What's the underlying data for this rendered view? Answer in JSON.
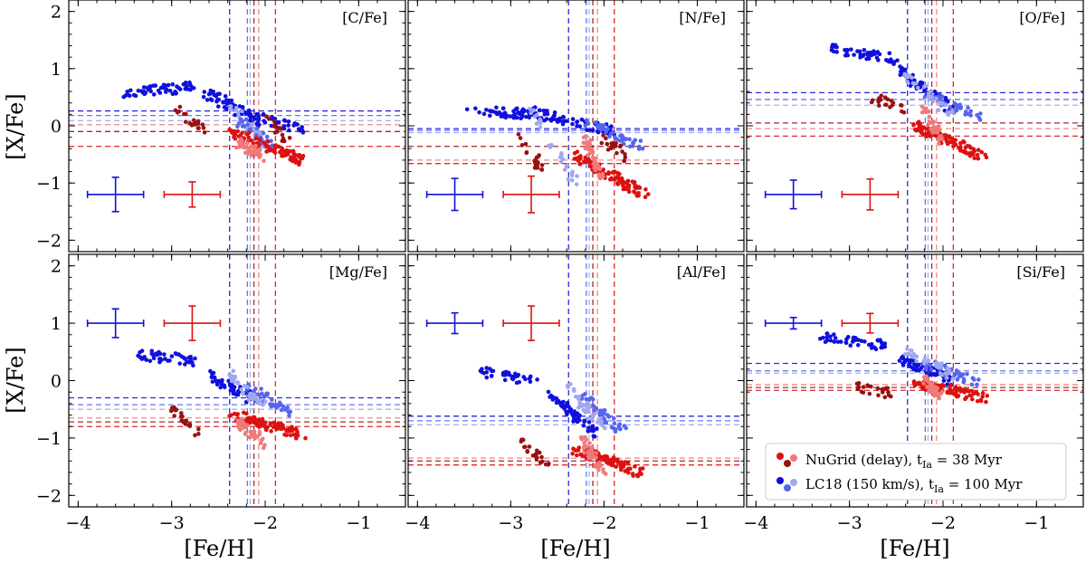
{
  "chart_data": {
    "type": "scatter",
    "xlabel": "[Fe/H]",
    "ylabel": "[X/Fe]",
    "xlim": [
      -4.1,
      -0.5
    ],
    "ylim": [
      -2.2,
      2.2
    ],
    "xticks": [
      -4,
      -3,
      -2,
      -1
    ],
    "yticks": [
      -2,
      -1,
      0,
      1,
      2
    ],
    "xtick_labels": [
      "−4",
      "−3",
      "−2",
      "−1"
    ],
    "ytick_labels": [
      "−2",
      "−1",
      "0",
      "1",
      "2"
    ],
    "colors": {
      "blue": "#1010dd",
      "mid_blue": "#5566ee",
      "light_blue": "#a0a8f0",
      "red": "#dd1111",
      "dark_red": "#991111",
      "light_red": "#f07a7a"
    },
    "feh_vlines": [
      {
        "x": -2.38,
        "color": "blue"
      },
      {
        "x": -2.19,
        "color": "mid_blue"
      },
      {
        "x": -2.16,
        "color": "light_blue"
      },
      {
        "x": -2.12,
        "color": "dark_red"
      },
      {
        "x": -2.07,
        "color": "light_red"
      },
      {
        "x": -1.89,
        "color": "red"
      }
    ],
    "panels": [
      {
        "label": "[C/Fe]",
        "hlines": [
          {
            "y": 0.26,
            "c": "blue"
          },
          {
            "y": 0.18,
            "c": "mid_blue"
          },
          {
            "y": 0.09,
            "c": "light_blue"
          },
          {
            "y": 0.02,
            "c": "light_red"
          },
          {
            "y": -0.1,
            "c": "dark_red"
          },
          {
            "y": -0.36,
            "c": "red"
          }
        ],
        "errors": [
          {
            "x": -3.6,
            "y": -1.2,
            "xerr": 0.3,
            "yerr": 0.3,
            "c": "blue"
          },
          {
            "x": -2.78,
            "y": -1.2,
            "xerr": 0.3,
            "yerr": 0.22,
            "c": "red"
          }
        ],
        "clusters": [
          {
            "c": "blue",
            "n": 55,
            "x": [
              -3.5,
              -2.75
            ],
            "y": [
              0.58,
              0.68
            ]
          },
          {
            "c": "blue",
            "n": 60,
            "x": [
              -2.65,
              -2.05
            ],
            "y": [
              0.6,
              0.05
            ]
          },
          {
            "c": "blue",
            "n": 40,
            "x": [
              -2.2,
              -1.6
            ],
            "y": [
              0.2,
              -0.05
            ]
          },
          {
            "c": "light_blue",
            "n": 35,
            "x": [
              -2.4,
              -2.0
            ],
            "y": [
              0.4,
              -0.3
            ]
          },
          {
            "c": "mid_blue",
            "n": 30,
            "x": [
              -2.3,
              -1.9
            ],
            "y": [
              0.1,
              -0.4
            ]
          },
          {
            "c": "dark_red",
            "n": 20,
            "x": [
              -2.95,
              -2.65
            ],
            "y": [
              0.3,
              -0.05
            ]
          },
          {
            "c": "dark_red",
            "n": 15,
            "x": [
              -2.0,
              -1.75
            ],
            "y": [
              0.1,
              -0.3
            ]
          },
          {
            "c": "red",
            "n": 90,
            "x": [
              -2.35,
              -1.6
            ],
            "y": [
              -0.1,
              -0.6
            ]
          },
          {
            "c": "light_red",
            "n": 40,
            "x": [
              -2.3,
              -2.0
            ],
            "y": [
              -0.3,
              -0.55
            ]
          }
        ]
      },
      {
        "label": "[N/Fe]",
        "hlines": [
          {
            "y": -0.05,
            "c": "blue"
          },
          {
            "y": -0.08,
            "c": "mid_blue"
          },
          {
            "y": -0.12,
            "c": "light_blue"
          },
          {
            "y": -0.36,
            "c": "dark_red"
          },
          {
            "y": -0.6,
            "c": "light_red"
          },
          {
            "y": -0.66,
            "c": "red"
          }
        ],
        "errors": [
          {
            "x": -3.6,
            "y": -1.2,
            "xerr": 0.3,
            "yerr": 0.28,
            "c": "blue"
          },
          {
            "x": -2.78,
            "y": -1.2,
            "xerr": 0.3,
            "yerr": 0.32,
            "c": "red"
          }
        ],
        "clusters": [
          {
            "c": "blue",
            "n": 45,
            "x": [
              -3.45,
              -2.8
            ],
            "y": [
              0.28,
              0.2
            ]
          },
          {
            "c": "blue",
            "n": 70,
            "x": [
              -2.8,
              -1.9
            ],
            "y": [
              0.25,
              -0.1
            ]
          },
          {
            "c": "mid_blue",
            "n": 40,
            "x": [
              -2.2,
              -1.6
            ],
            "y": [
              0.05,
              -0.35
            ]
          },
          {
            "c": "light_blue",
            "n": 30,
            "x": [
              -2.8,
              -2.3
            ],
            "y": [
              0.3,
              -1.0
            ]
          },
          {
            "c": "dark_red",
            "n": 20,
            "x": [
              -2.95,
              -2.65
            ],
            "y": [
              -0.1,
              -0.8
            ]
          },
          {
            "c": "dark_red",
            "n": 20,
            "x": [
              -2.05,
              -1.7
            ],
            "y": [
              -0.2,
              -0.6
            ]
          },
          {
            "c": "red",
            "n": 90,
            "x": [
              -2.35,
              -1.55
            ],
            "y": [
              -0.5,
              -1.2
            ]
          },
          {
            "c": "light_red",
            "n": 40,
            "x": [
              -2.2,
              -2.0
            ],
            "y": [
              -0.2,
              -1.0
            ]
          }
        ]
      },
      {
        "label": "[O/Fe]",
        "hlines": [
          {
            "y": 0.58,
            "c": "blue"
          },
          {
            "y": 0.46,
            "c": "mid_blue"
          },
          {
            "y": 0.36,
            "c": "light_blue"
          },
          {
            "y": 0.05,
            "c": "dark_red"
          },
          {
            "y": -0.05,
            "c": "light_red"
          },
          {
            "y": -0.18,
            "c": "red"
          }
        ],
        "errors": [
          {
            "x": -3.6,
            "y": -1.2,
            "xerr": 0.3,
            "yerr": 0.25,
            "c": "blue"
          },
          {
            "x": -2.78,
            "y": -1.2,
            "xerr": 0.3,
            "yerr": 0.27,
            "c": "red"
          }
        ],
        "clusters": [
          {
            "c": "blue",
            "n": 45,
            "x": [
              -3.2,
              -2.5
            ],
            "y": [
              1.35,
              1.15
            ]
          },
          {
            "c": "blue",
            "n": 60,
            "x": [
              -2.5,
              -1.9
            ],
            "y": [
              1.0,
              0.3
            ]
          },
          {
            "c": "mid_blue",
            "n": 40,
            "x": [
              -2.2,
              -1.6
            ],
            "y": [
              0.6,
              0.1
            ]
          },
          {
            "c": "light_blue",
            "n": 30,
            "x": [
              -2.4,
              -1.9
            ],
            "y": [
              0.9,
              0.2
            ]
          },
          {
            "c": "dark_red",
            "n": 20,
            "x": [
              -2.8,
              -2.4
            ],
            "y": [
              0.5,
              0.3
            ]
          },
          {
            "c": "red",
            "n": 90,
            "x": [
              -2.3,
              -1.55
            ],
            "y": [
              0.0,
              -0.55
            ]
          },
          {
            "c": "light_red",
            "n": 35,
            "x": [
              -2.2,
              -2.0
            ],
            "y": [
              0.3,
              -0.3
            ]
          }
        ]
      },
      {
        "label": "[Mg/Fe]",
        "hlines": [
          {
            "y": -0.3,
            "c": "blue"
          },
          {
            "y": -0.42,
            "c": "mid_blue"
          },
          {
            "y": -0.5,
            "c": "light_blue"
          },
          {
            "y": -0.65,
            "c": "light_red"
          },
          {
            "y": -0.72,
            "c": "dark_red"
          },
          {
            "y": -0.8,
            "c": "red"
          }
        ],
        "errors": [
          {
            "x": -3.6,
            "y": 1.0,
            "xerr": 0.3,
            "yerr": 0.25,
            "c": "blue"
          },
          {
            "x": -2.78,
            "y": 1.0,
            "xerr": 0.3,
            "yerr": 0.3,
            "c": "red"
          }
        ],
        "clusters": [
          {
            "c": "blue",
            "n": 45,
            "x": [
              -3.35,
              -2.75
            ],
            "y": [
              0.45,
              0.35
            ]
          },
          {
            "c": "blue",
            "n": 60,
            "x": [
              -2.6,
              -2.1
            ],
            "y": [
              0.1,
              -0.35
            ]
          },
          {
            "c": "mid_blue",
            "n": 40,
            "x": [
              -2.2,
              -1.7
            ],
            "y": [
              -0.1,
              -0.6
            ]
          },
          {
            "c": "light_blue",
            "n": 35,
            "x": [
              -2.4,
              -2.0
            ],
            "y": [
              0.15,
              -0.5
            ]
          },
          {
            "c": "dark_red",
            "n": 22,
            "x": [
              -3.0,
              -2.7
            ],
            "y": [
              -0.5,
              -0.95
            ]
          },
          {
            "c": "red",
            "n": 90,
            "x": [
              -2.35,
              -1.6
            ],
            "y": [
              -0.6,
              -0.95
            ]
          },
          {
            "c": "light_red",
            "n": 40,
            "x": [
              -2.3,
              -2.0
            ],
            "y": [
              -0.7,
              -1.1
            ]
          }
        ]
      },
      {
        "label": "[Al/Fe]",
        "hlines": [
          {
            "y": -0.62,
            "c": "blue"
          },
          {
            "y": -0.7,
            "c": "mid_blue"
          },
          {
            "y": -0.77,
            "c": "light_blue"
          },
          {
            "y": -1.35,
            "c": "light_red"
          },
          {
            "y": -1.4,
            "c": "dark_red"
          },
          {
            "y": -1.47,
            "c": "red"
          }
        ],
        "errors": [
          {
            "x": -3.6,
            "y": 1.0,
            "xerr": 0.3,
            "yerr": 0.18,
            "c": "blue"
          },
          {
            "x": -2.78,
            "y": 1.0,
            "xerr": 0.3,
            "yerr": 0.3,
            "c": "red"
          }
        ],
        "clusters": [
          {
            "c": "blue",
            "n": 40,
            "x": [
              -3.35,
              -2.75
            ],
            "y": [
              0.15,
              0.0
            ]
          },
          {
            "c": "blue",
            "n": 60,
            "x": [
              -2.6,
              -2.1
            ],
            "y": [
              -0.2,
              -0.9
            ]
          },
          {
            "c": "mid_blue",
            "n": 40,
            "x": [
              -2.2,
              -1.8
            ],
            "y": [
              -0.3,
              -0.9
            ]
          },
          {
            "c": "light_blue",
            "n": 35,
            "x": [
              -2.4,
              -2.0
            ],
            "y": [
              -0.1,
              -0.8
            ]
          },
          {
            "c": "dark_red",
            "n": 22,
            "x": [
              -2.9,
              -2.6
            ],
            "y": [
              -1.05,
              -1.5
            ]
          },
          {
            "c": "red",
            "n": 90,
            "x": [
              -2.3,
              -1.6
            ],
            "y": [
              -1.2,
              -1.6
            ]
          },
          {
            "c": "light_red",
            "n": 40,
            "x": [
              -2.25,
              -2.0
            ],
            "y": [
              -1.0,
              -1.6
            ]
          }
        ]
      },
      {
        "label": "[Si/Fe]",
        "hlines": [
          {
            "y": 0.3,
            "c": "blue"
          },
          {
            "y": 0.17,
            "c": "mid_blue"
          },
          {
            "y": 0.13,
            "c": "light_blue"
          },
          {
            "y": -0.07,
            "c": "light_red"
          },
          {
            "y": -0.12,
            "c": "dark_red"
          },
          {
            "y": -0.17,
            "c": "red"
          }
        ],
        "errors": [
          {
            "x": -3.6,
            "y": 1.0,
            "xerr": 0.3,
            "yerr": 0.1,
            "c": "blue"
          },
          {
            "x": -2.78,
            "y": 1.0,
            "xerr": 0.3,
            "yerr": 0.17,
            "c": "red"
          }
        ],
        "clusters": [
          {
            "c": "blue",
            "n": 45,
            "x": [
              -3.3,
              -2.6
            ],
            "y": [
              0.75,
              0.6
            ]
          },
          {
            "c": "blue",
            "n": 60,
            "x": [
              -2.5,
              -1.9
            ],
            "y": [
              0.4,
              0.0
            ]
          },
          {
            "c": "mid_blue",
            "n": 40,
            "x": [
              -2.2,
              -1.6
            ],
            "y": [
              0.3,
              -0.05
            ]
          },
          {
            "c": "light_blue",
            "n": 35,
            "x": [
              -2.4,
              -1.9
            ],
            "y": [
              0.55,
              0.1
            ]
          },
          {
            "c": "dark_red",
            "n": 22,
            "x": [
              -2.95,
              -2.5
            ],
            "y": [
              -0.1,
              -0.25
            ]
          },
          {
            "c": "red",
            "n": 90,
            "x": [
              -2.3,
              -1.55
            ],
            "y": [
              -0.05,
              -0.3
            ]
          },
          {
            "c": "light_red",
            "n": 40,
            "x": [
              -2.2,
              -2.0
            ],
            "y": [
              0.0,
              -0.3
            ]
          }
        ]
      }
    ],
    "legend": {
      "location": "lower-right of last panel",
      "entries": [
        {
          "label": "NuGrid (delay), t",
          "sub": "Ia",
          "tail": " = 38 Myr",
          "colors": [
            "red",
            "dark_red",
            "light_red"
          ]
        },
        {
          "label": "LC18 (150 km/s), t",
          "sub": "Ia",
          "tail": " = 100 Myr",
          "colors": [
            "blue",
            "mid_blue",
            "light_blue"
          ]
        }
      ]
    }
  }
}
